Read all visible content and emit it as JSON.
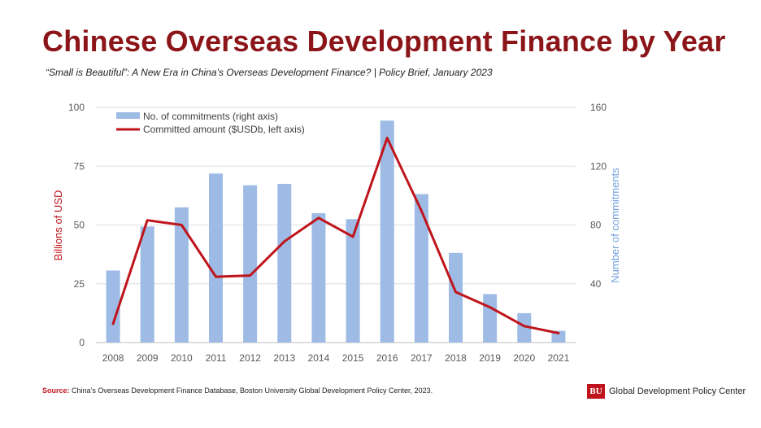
{
  "title": "Chinese Overseas Development Finance by Year",
  "subtitle": "“Small is Beautiful”: A New Era in China’s Overseas Development Finance? | Policy Brief, January 2023",
  "source": {
    "label": "Source",
    "separator": ":",
    "text": " China’s Overseas Development Finance Database, Boston University Global Development Policy Center, 2023."
  },
  "brand": {
    "logo_text": "BU",
    "name": "Global Development Policy Center"
  },
  "colors": {
    "title": "#8b1518",
    "bars": "#9dbbe4",
    "line": "#c0141c",
    "left_axis_title": "#c0141c",
    "right_axis_title": "#6f9fdc",
    "grid": "#dedede",
    "tick_text": "#595959"
  },
  "chart_data": {
    "type": "bar",
    "categories": [
      "2008",
      "2009",
      "2010",
      "2011",
      "2012",
      "2013",
      "2014",
      "2015",
      "2016",
      "2017",
      "2018",
      "2019",
      "2020",
      "2021"
    ],
    "series": [
      {
        "name": "No. of commitments (right axis)",
        "type": "bar",
        "axis": "right",
        "values": [
          49,
          79,
          92,
          115,
          107,
          108,
          88,
          84,
          151,
          101,
          61,
          33,
          20,
          8
        ]
      },
      {
        "name": "Committed amount ($USDb, left axis)",
        "type": "line",
        "axis": "left",
        "values": [
          8,
          52,
          50,
          28,
          28.5,
          43,
          53,
          45,
          87,
          56,
          21.5,
          15,
          7,
          4
        ]
      }
    ],
    "y_left": {
      "label": "Billions of USD",
      "range": [
        0,
        100
      ],
      "ticks": [
        "0",
        "25",
        "50",
        "75",
        "100"
      ]
    },
    "y_right": {
      "label": "Number of commitments",
      "range": [
        0,
        160
      ],
      "ticks": [
        "40",
        "80",
        "120",
        "160"
      ]
    },
    "grid": true,
    "legend_position": "top-left"
  }
}
